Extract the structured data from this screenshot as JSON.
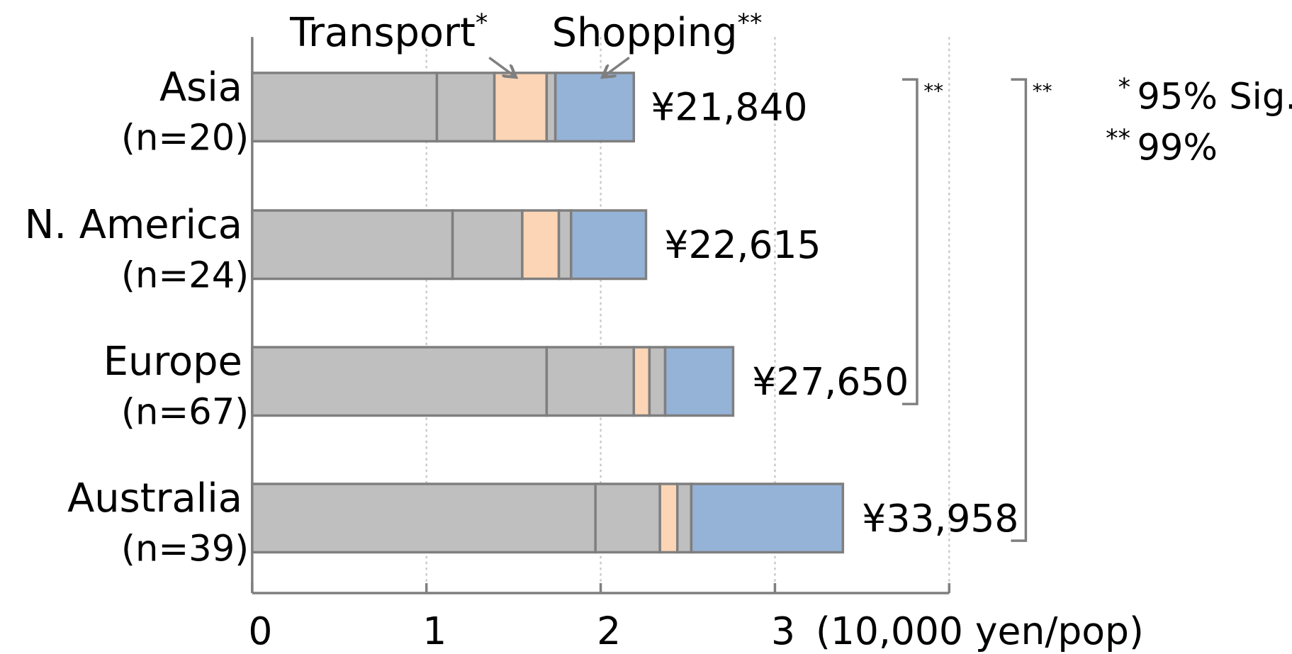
{
  "chart_data": {
    "type": "stacked_barh",
    "categories": [
      "Asia",
      "N. America",
      "Europe",
      "Australia"
    ],
    "sample_labels": [
      "(n=20)",
      "(n=24)",
      "(n=67)",
      "(n=39)"
    ],
    "series": [
      {
        "color": "#bfbfbf",
        "values": [
          1.06,
          1.15,
          1.69,
          1.97
        ]
      },
      {
        "color": "#bfbfbf",
        "values": [
          0.33,
          0.4,
          0.5,
          0.37
        ]
      },
      {
        "name": "Transport",
        "marker": "*",
        "color": "#fbd5b5",
        "values": [
          0.3,
          0.21,
          0.09,
          0.1
        ]
      },
      {
        "color": "#bfbfbf",
        "values": [
          0.05,
          0.07,
          0.09,
          0.08
        ]
      },
      {
        "name": "Shopping",
        "marker": "**",
        "color": "#95b3d7",
        "values": [
          0.45,
          0.43,
          0.39,
          0.87
        ]
      }
    ],
    "totals": {
      "values": [
        2.184,
        2.2615,
        2.765,
        3.3958
      ],
      "value_labels": [
        "¥21,840",
        "¥22,615",
        "¥27,650",
        "¥33,958"
      ]
    },
    "xlabel": "(10,000 yen/pop)",
    "xlim": [
      0,
      4
    ],
    "xticks": [
      0,
      1,
      2,
      3
    ],
    "grid": true,
    "brackets": [
      {
        "from": 0,
        "to": 2,
        "label": "**"
      },
      {
        "from": 0,
        "to": 3,
        "label": "**"
      }
    ],
    "significance_legend": [
      {
        "symbol": "*",
        "text": "95% Sig."
      },
      {
        "symbol": "**",
        "text": "99%"
      }
    ]
  }
}
